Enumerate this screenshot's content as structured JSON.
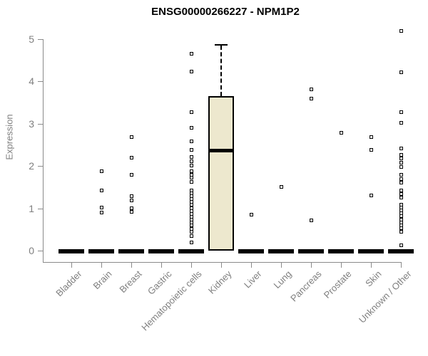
{
  "page": {
    "background": "#ffffff"
  },
  "chart_data": {
    "type": "boxplot",
    "title": "ENSG00000266227 - NPM1P2",
    "ylabel": "Expression",
    "xlabel": "",
    "ylim": [
      0,
      5
    ],
    "yticks": [
      0,
      1,
      2,
      3,
      4,
      5
    ],
    "grid": false,
    "legend": "none",
    "point_style": "open-square",
    "colors": {
      "box_fill": "#ede8ce",
      "box_border": "#000000",
      "median": "#000000",
      "zero_bar": "#000000",
      "point": "#000000",
      "axis": "#8a8a8a",
      "text": "#7f7f7f",
      "title": "#000000"
    },
    "categories": [
      "Bladder",
      "Brain",
      "Breast",
      "Gastric",
      "Hematopoietic cells",
      "Kidney",
      "Liver",
      "Lung",
      "Pancreas",
      "Prostate",
      "Skin",
      "Unknown / Other"
    ],
    "series": [
      {
        "category": "Bladder",
        "box": {
          "q1": 0,
          "median": 0,
          "q3": 0,
          "whisker_low": 0,
          "whisker_high": 0
        },
        "points": []
      },
      {
        "category": "Brain",
        "box": {
          "q1": 0,
          "median": 0,
          "q3": 0,
          "whisker_low": 0,
          "whisker_high": 0
        },
        "points": [
          1.88,
          1.43,
          1.02,
          0.9
        ]
      },
      {
        "category": "Breast",
        "box": {
          "q1": 0,
          "median": 0,
          "q3": 0,
          "whisker_low": 0,
          "whisker_high": 0
        },
        "points": [
          2.68,
          2.2,
          1.8,
          1.28,
          1.18,
          1.0,
          0.92
        ]
      },
      {
        "category": "Gastric",
        "box": {
          "q1": 0,
          "median": 0,
          "q3": 0,
          "whisker_low": 0,
          "whisker_high": 0
        },
        "points": []
      },
      {
        "category": "Hematopoietic cells",
        "box": {
          "q1": 0,
          "median": 0,
          "q3": 0,
          "whisker_low": 0,
          "whisker_high": 0
        },
        "points": [
          4.66,
          4.24,
          3.28,
          2.9,
          2.59,
          2.39,
          2.22,
          2.12,
          2.02,
          1.88,
          1.8,
          1.72,
          1.62,
          1.43,
          1.36,
          1.29,
          1.22,
          1.15,
          1.08,
          1.01,
          0.94,
          0.87,
          0.8,
          0.73,
          0.66,
          0.59,
          0.52,
          0.45,
          0.34,
          0.2
        ]
      },
      {
        "category": "Kidney",
        "box": {
          "q1": 0,
          "median": 2.38,
          "q3": 3.66,
          "whisker_low": 0,
          "whisker_high": 4.88
        },
        "points": []
      },
      {
        "category": "Liver",
        "box": {
          "q1": 0,
          "median": 0,
          "q3": 0,
          "whisker_low": 0,
          "whisker_high": 0
        },
        "points": [
          0.85
        ]
      },
      {
        "category": "Lung",
        "box": {
          "q1": 0,
          "median": 0,
          "q3": 0,
          "whisker_low": 0,
          "whisker_high": 0
        },
        "points": [
          1.5
        ]
      },
      {
        "category": "Pancreas",
        "box": {
          "q1": 0,
          "median": 0,
          "q3": 0,
          "whisker_low": 0,
          "whisker_high": 0
        },
        "points": [
          3.82,
          3.6,
          0.72
        ]
      },
      {
        "category": "Prostate",
        "box": {
          "q1": 0,
          "median": 0,
          "q3": 0,
          "whisker_low": 0,
          "whisker_high": 0
        },
        "points": [
          2.79
        ]
      },
      {
        "category": "Skin",
        "box": {
          "q1": 0,
          "median": 0,
          "q3": 0,
          "whisker_low": 0,
          "whisker_high": 0
        },
        "points": [
          2.69,
          2.39,
          1.3
        ]
      },
      {
        "category": "Unknown / Other",
        "box": {
          "q1": 0,
          "median": 0,
          "q3": 0,
          "whisker_low": 0,
          "whisker_high": 0
        },
        "points": [
          5.2,
          4.22,
          3.28,
          3.03,
          2.41,
          2.27,
          2.18,
          2.08,
          1.97,
          1.8,
          1.7,
          1.6,
          1.43,
          1.34,
          1.26,
          1.09,
          1.02,
          0.95,
          0.88,
          0.81,
          0.74,
          0.67,
          0.6,
          0.53,
          0.45,
          0.12
        ]
      }
    ]
  }
}
